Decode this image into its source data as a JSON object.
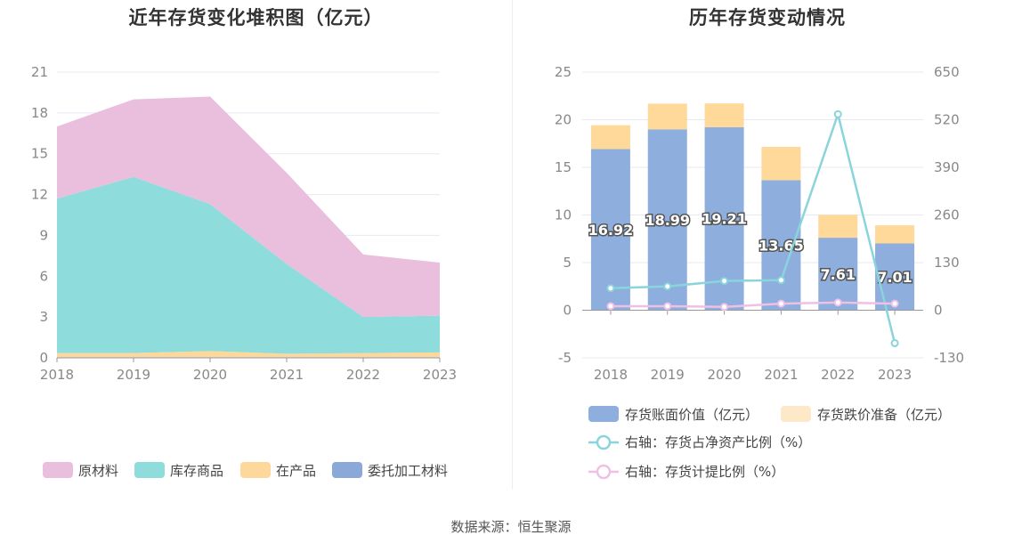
{
  "source": "数据来源：恒生聚源",
  "colors": {
    "raw_material": "#e9bfdd",
    "stock_goods": "#8fdcdc",
    "wip": "#fdd89a",
    "consigned": "#8aa9d8",
    "book_value": "#8eaedd",
    "impairment": "#fed999",
    "net_asset_ratio": "#8ad4dc",
    "provision_ratio": "#efc0e4",
    "grid": "#e6e9f2",
    "axis": "#999999"
  },
  "chart_data": [
    {
      "type": "area",
      "stacked": true,
      "title": "近年存货变化堆积图（亿元）",
      "categories": [
        "2018",
        "2019",
        "2020",
        "2021",
        "2022",
        "2023"
      ],
      "ylim": [
        0,
        21
      ],
      "yticks": [
        "0",
        "3",
        "6",
        "9",
        "12",
        "15",
        "18",
        "21"
      ],
      "series": [
        {
          "name": "委托加工材料",
          "values": [
            0.05,
            0.05,
            0.05,
            0.05,
            0.05,
            0.05
          ]
        },
        {
          "name": "在产品",
          "values": [
            0.3,
            0.3,
            0.45,
            0.25,
            0.3,
            0.35
          ]
        },
        {
          "name": "库存商品",
          "values": [
            11.35,
            12.95,
            10.8,
            6.6,
            2.65,
            2.7
          ]
        },
        {
          "name": "原材料",
          "values": [
            5.3,
            5.7,
            7.9,
            6.7,
            4.6,
            3.9
          ]
        }
      ],
      "legend": [
        "原材料",
        "库存商品",
        "在产品",
        "委托加工材料"
      ],
      "legend_position": "bottom"
    },
    {
      "type": "bar",
      "stacked": true,
      "title": "历年存货变动情况",
      "categories": [
        "2018",
        "2019",
        "2020",
        "2021",
        "2022",
        "2023"
      ],
      "ylim": [
        -5,
        25
      ],
      "yticks": [
        "-5",
        "0",
        "5",
        "10",
        "15",
        "20",
        "25"
      ],
      "y2lim": [
        -130,
        650
      ],
      "y2ticks": [
        "-130",
        "0",
        "130",
        "260",
        "390",
        "520",
        "650"
      ],
      "series": [
        {
          "name": "存货账面价值（亿元）",
          "type": "bar",
          "values": [
            16.92,
            18.99,
            19.21,
            13.65,
            7.61,
            7.01
          ],
          "labels": [
            "16.92",
            "18.99",
            "19.21",
            "13.65",
            "7.61",
            "7.01"
          ]
        },
        {
          "name": "存货跌价准备（亿元）",
          "type": "bar",
          "values": [
            2.5,
            2.7,
            2.5,
            3.5,
            2.4,
            1.9
          ]
        },
        {
          "name": "右轴：存货占净资产比例（%）",
          "type": "line",
          "axis": "right",
          "values": [
            60,
            65,
            80,
            82,
            535,
            -90
          ]
        },
        {
          "name": "右轴：存货计提比例（%）",
          "type": "line",
          "axis": "right",
          "values": [
            11,
            11,
            9,
            18,
            21,
            18
          ]
        }
      ],
      "legend_position": "bottom"
    }
  ]
}
